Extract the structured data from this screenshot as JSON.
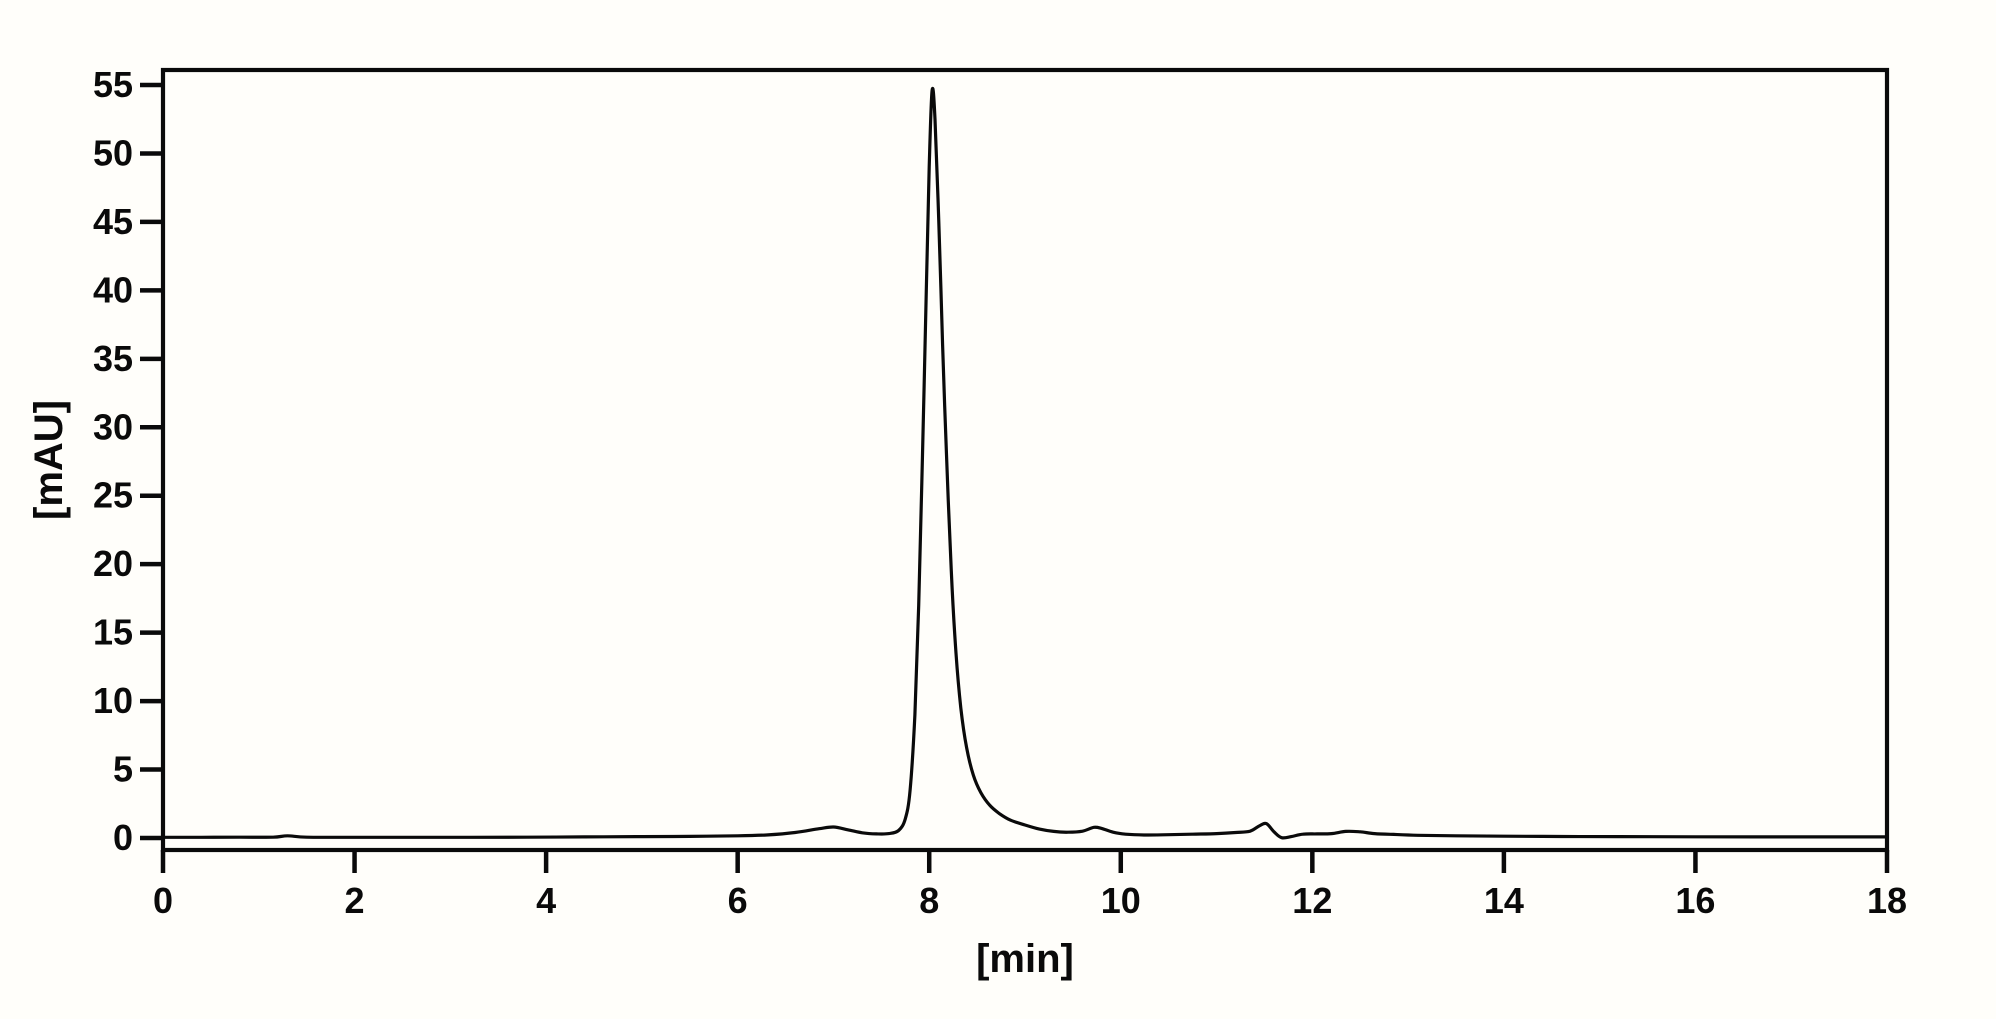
{
  "page": {
    "background_color": "#fffefa"
  },
  "chart_data": {
    "type": "line",
    "title": "",
    "xlabel": "[min]",
    "ylabel": "[mAU]",
    "xlim": [
      0,
      18
    ],
    "ylim": [
      -0.9,
      56.1
    ],
    "x_ticks": [
      0,
      2,
      4,
      6,
      8,
      10,
      12,
      14,
      16,
      18
    ],
    "y_ticks": [
      0,
      5,
      10,
      15,
      20,
      25,
      30,
      35,
      40,
      45,
      50,
      55
    ],
    "grid": false,
    "legend_position": "none",
    "line_color": "#0a0a0a",
    "frame_color": "#0a0a0a",
    "series": [
      {
        "name": "detector-signal",
        "units_x": "min",
        "units_y": "mAU",
        "points": [
          [
            0.0,
            0.05
          ],
          [
            0.4,
            0.05
          ],
          [
            0.8,
            0.06
          ],
          [
            1.15,
            0.06
          ],
          [
            1.3,
            0.16
          ],
          [
            1.5,
            0.06
          ],
          [
            2.0,
            0.05
          ],
          [
            2.6,
            0.05
          ],
          [
            3.2,
            0.05
          ],
          [
            3.8,
            0.06
          ],
          [
            4.4,
            0.08
          ],
          [
            5.0,
            0.1
          ],
          [
            5.5,
            0.12
          ],
          [
            6.0,
            0.16
          ],
          [
            6.3,
            0.22
          ],
          [
            6.6,
            0.4
          ],
          [
            6.85,
            0.68
          ],
          [
            7.0,
            0.8
          ],
          [
            7.15,
            0.6
          ],
          [
            7.3,
            0.38
          ],
          [
            7.45,
            0.3
          ],
          [
            7.58,
            0.32
          ],
          [
            7.68,
            0.55
          ],
          [
            7.75,
            1.4
          ],
          [
            7.8,
            3.5
          ],
          [
            7.85,
            9.0
          ],
          [
            7.89,
            17.0
          ],
          [
            7.93,
            28.0
          ],
          [
            7.97,
            40.0
          ],
          [
            8.0,
            49.0
          ],
          [
            8.03,
            54.6
          ],
          [
            8.06,
            52.5
          ],
          [
            8.1,
            45.0
          ],
          [
            8.14,
            36.0
          ],
          [
            8.18,
            28.0
          ],
          [
            8.23,
            19.5
          ],
          [
            8.28,
            13.5
          ],
          [
            8.33,
            9.5
          ],
          [
            8.39,
            6.6
          ],
          [
            8.46,
            4.6
          ],
          [
            8.54,
            3.3
          ],
          [
            8.63,
            2.4
          ],
          [
            8.73,
            1.8
          ],
          [
            8.85,
            1.3
          ],
          [
            9.0,
            0.95
          ],
          [
            9.15,
            0.65
          ],
          [
            9.3,
            0.48
          ],
          [
            9.45,
            0.42
          ],
          [
            9.6,
            0.5
          ],
          [
            9.72,
            0.78
          ],
          [
            9.8,
            0.7
          ],
          [
            9.92,
            0.42
          ],
          [
            10.05,
            0.28
          ],
          [
            10.25,
            0.22
          ],
          [
            10.5,
            0.24
          ],
          [
            10.75,
            0.28
          ],
          [
            11.0,
            0.32
          ],
          [
            11.2,
            0.4
          ],
          [
            11.35,
            0.5
          ],
          [
            11.45,
            0.9
          ],
          [
            11.52,
            1.05
          ],
          [
            11.6,
            0.45
          ],
          [
            11.68,
            0.02
          ],
          [
            11.78,
            0.1
          ],
          [
            11.9,
            0.28
          ],
          [
            12.05,
            0.3
          ],
          [
            12.2,
            0.32
          ],
          [
            12.35,
            0.48
          ],
          [
            12.5,
            0.45
          ],
          [
            12.65,
            0.32
          ],
          [
            12.85,
            0.26
          ],
          [
            13.1,
            0.2
          ],
          [
            13.5,
            0.16
          ],
          [
            14.0,
            0.13
          ],
          [
            14.6,
            0.11
          ],
          [
            15.2,
            0.1
          ],
          [
            16.0,
            0.09
          ],
          [
            17.0,
            0.08
          ],
          [
            18.0,
            0.08
          ]
        ]
      }
    ]
  }
}
